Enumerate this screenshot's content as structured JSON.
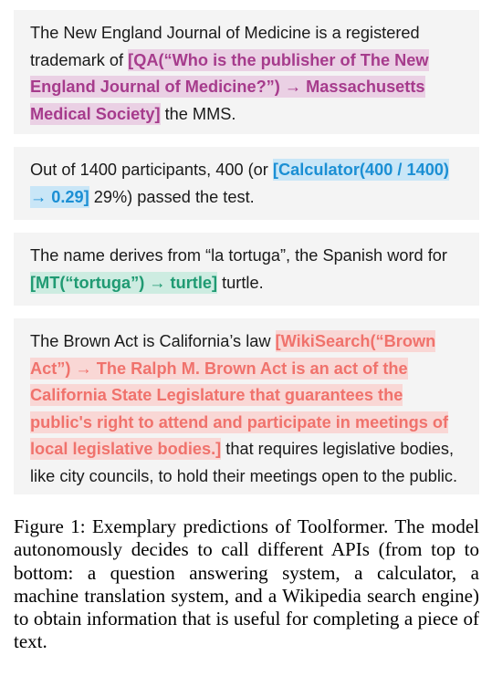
{
  "examples": [
    {
      "before": "The New England Journal of Medicine is a registered trademark of ",
      "call": "[QA(“Who is the publisher of The New England Journal of Medicine?”) → Massachusetts Medical Society]",
      "after": " the MMS.",
      "color": "#a63b8c",
      "highlight": "#ead0e4"
    },
    {
      "before": "Out of 1400 participants, 400 (or ",
      "call": "[Calculator(400 / 1400) → 0.29]",
      "after": " 29%) passed the test.",
      "color": "#1b8fd4",
      "highlight": "#c9e6f7"
    },
    {
      "before": "The name derives from “la tortuga”, the Spanish word for ",
      "call": "[MT(“tortuga”) → turtle]",
      "after": " turtle.",
      "color": "#1f9a72",
      "highlight": "#cdece1"
    },
    {
      "before": "The Brown Act is California’s law ",
      "call": "[WikiSearch(“Brown Act”) → The Ralph M. Brown Act is an act of the California State Legislature that guarantees the public's right to attend and participate in meetings of local legislative bodies.]",
      "after": " that requires legislative bodies, like city councils, to hold their meetings open to the public.",
      "color": "#f0726c",
      "highlight": "#f9d7d5"
    }
  ],
  "caption": {
    "text": "Figure 1: Exemplary predictions of Toolformer. The model autonomously decides to call different APIs (from top to bottom: a question answering system, a calculator, a machine translation system, and a Wikipedia search engine) to obtain information that is useful for completing a piece of text."
  }
}
